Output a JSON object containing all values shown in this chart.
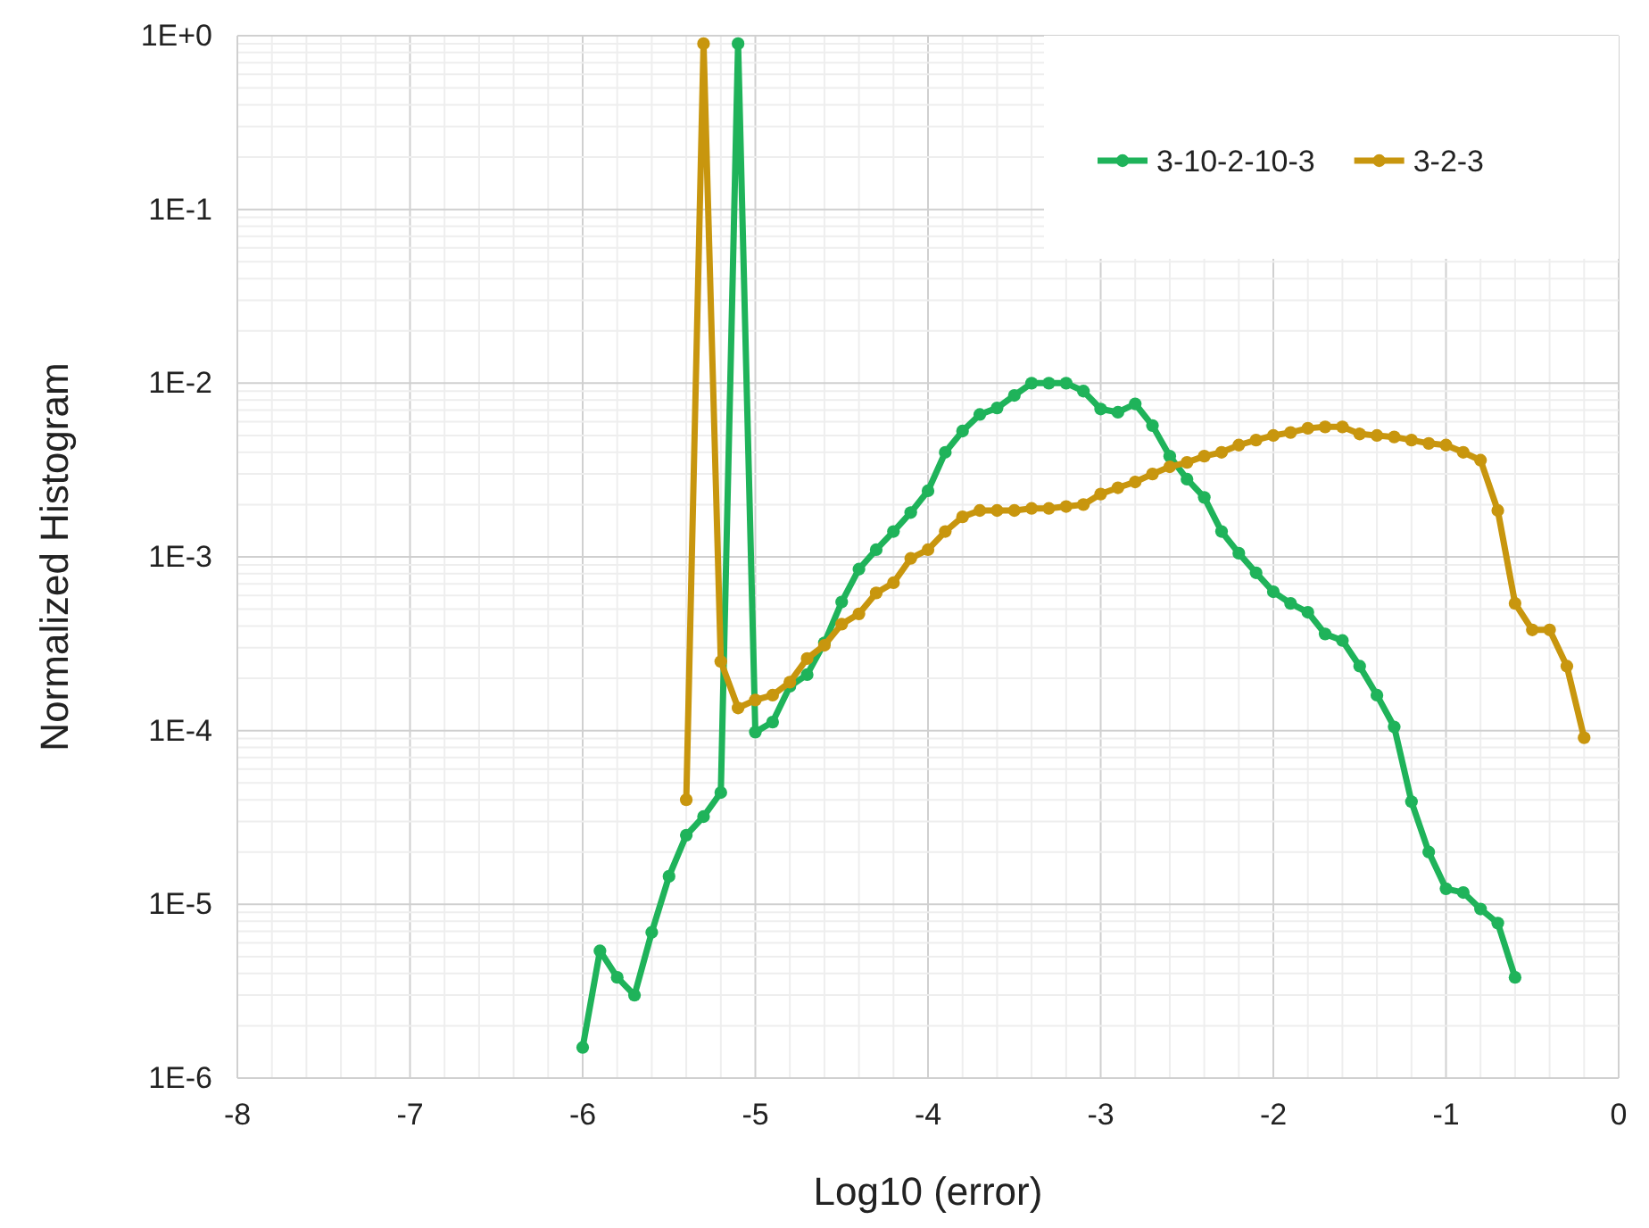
{
  "chart_data": {
    "type": "line",
    "xlabel": "Log10 (error)",
    "ylabel": "Normalized Histogram",
    "log": "y",
    "grid": true,
    "legend": "top right",
    "marker": "circle",
    "line_style": "solid",
    "xlim": [
      -8,
      0
    ],
    "xticks": [
      -8,
      -7,
      -6,
      -5,
      -4,
      -3,
      -2,
      -1,
      0
    ],
    "ylim": [
      1e-06,
      1
    ],
    "yticks": [
      {
        "value": 1e-06,
        "label": "1E-6"
      },
      {
        "value": 1e-05,
        "label": "1E-5"
      },
      {
        "value": 0.0001,
        "label": "1E-4"
      },
      {
        "value": 0.001,
        "label": "1E-3"
      },
      {
        "value": 0.01,
        "label": "1E-2"
      },
      {
        "value": 0.1,
        "label": "1E-1"
      },
      {
        "value": 1,
        "label": "1E+0"
      }
    ],
    "series": [
      {
        "name": "3-10-2-10-3",
        "color": "#1fb35a",
        "x": [
          -6.0,
          -5.9,
          -5.8,
          -5.7,
          -5.6,
          -5.5,
          -5.4,
          -5.3,
          -5.2,
          -5.1,
          -5.0,
          -4.9,
          -4.8,
          -4.7,
          -4.6,
          -4.5,
          -4.4,
          -4.3,
          -4.2,
          -4.1,
          -4.0,
          -3.9,
          -3.8,
          -3.7,
          -3.6,
          -3.5,
          -3.4,
          -3.3,
          -3.2,
          -3.1,
          -3.0,
          -2.9,
          -2.8,
          -2.7,
          -2.6,
          -2.5,
          -2.4,
          -2.3,
          -2.2,
          -2.1,
          -2.0,
          -1.9,
          -1.8,
          -1.7,
          -1.6,
          -1.5,
          -1.4,
          -1.3,
          -1.2,
          -1.1,
          -1.0,
          -0.9,
          -0.8,
          -0.7,
          -0.6
        ],
        "values": [
          1.5e-06,
          5.4e-06,
          3.8e-06,
          3e-06,
          6.9e-06,
          1.45e-05,
          2.5e-05,
          3.2e-05,
          4.4e-05,
          0.9,
          9.8e-05,
          0.000112,
          0.00018,
          0.00021,
          0.00032,
          0.00055,
          0.00085,
          0.0011,
          0.0014,
          0.0018,
          0.0024,
          0.004,
          0.0053,
          0.0066,
          0.0072,
          0.0085,
          0.01,
          0.01,
          0.01,
          0.009,
          0.0071,
          0.0068,
          0.0076,
          0.0057,
          0.0038,
          0.0028,
          0.0022,
          0.0014,
          0.00105,
          0.00081,
          0.00063,
          0.00054,
          0.00048,
          0.00036,
          0.00033,
          0.000235,
          0.00016,
          0.000105,
          3.9e-05,
          2e-05,
          1.23e-05,
          1.17e-05,
          9.4e-06,
          7.8e-06,
          3.8e-06
        ]
      },
      {
        "name": "3-2-3",
        "color": "#c8960e",
        "x": [
          -5.4,
          -5.3,
          -5.2,
          -5.1,
          -5.0,
          -4.9,
          -4.8,
          -4.7,
          -4.6,
          -4.5,
          -4.4,
          -4.3,
          -4.2,
          -4.1,
          -4.0,
          -3.9,
          -3.8,
          -3.7,
          -3.6,
          -3.5,
          -3.4,
          -3.3,
          -3.2,
          -3.1,
          -3.0,
          -2.9,
          -2.8,
          -2.7,
          -2.6,
          -2.5,
          -2.4,
          -2.3,
          -2.2,
          -2.1,
          -2.0,
          -1.9,
          -1.8,
          -1.7,
          -1.6,
          -1.5,
          -1.4,
          -1.3,
          -1.2,
          -1.1,
          -1.0,
          -0.9,
          -0.8,
          -0.7,
          -0.6,
          -0.5,
          -0.4,
          -0.3,
          -0.2
        ],
        "values": [
          4e-05,
          0.9,
          0.00025,
          0.000135,
          0.00015,
          0.00016,
          0.00019,
          0.00026,
          0.00031,
          0.00041,
          0.00047,
          0.00062,
          0.00071,
          0.00098,
          0.0011,
          0.0014,
          0.0017,
          0.00185,
          0.00185,
          0.00185,
          0.0019,
          0.0019,
          0.00195,
          0.002,
          0.0023,
          0.0025,
          0.0027,
          0.003,
          0.0033,
          0.0035,
          0.0038,
          0.004,
          0.0044,
          0.0047,
          0.005,
          0.0052,
          0.0055,
          0.0056,
          0.0056,
          0.0051,
          0.005,
          0.0049,
          0.0047,
          0.0045,
          0.0044,
          0.004,
          0.0036,
          0.00185,
          0.00054,
          0.00038,
          0.00038,
          0.000235,
          9.1e-05
        ]
      }
    ]
  }
}
